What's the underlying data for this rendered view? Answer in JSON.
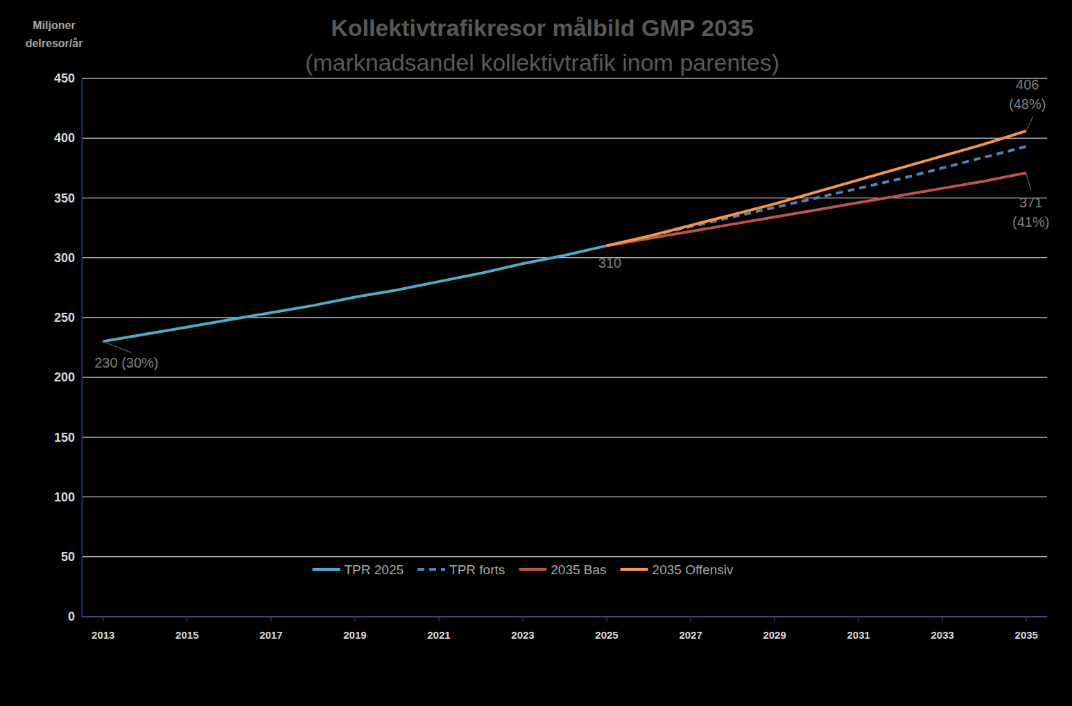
{
  "chart_data": {
    "type": "line",
    "title": "Kollektivtrafikresor målbild GMP 2035",
    "subtitle": "(marknadsandel kollektivtrafik inom parentes)",
    "ylabel": [
      "Miljoner",
      "delresor/år"
    ],
    "x": [
      2013,
      2014,
      2015,
      2016,
      2017,
      2018,
      2019,
      2020,
      2021,
      2022,
      2023,
      2024,
      2025,
      2026,
      2027,
      2028,
      2029,
      2030,
      2031,
      2032,
      2033,
      2034,
      2035
    ],
    "series": [
      {
        "name": "TPR 2025",
        "color": "#4bacc6",
        "line_style": "solid",
        "values": [
          230,
          236,
          242,
          248,
          254,
          260,
          267,
          273,
          280,
          287,
          295,
          302,
          310,
          null,
          null,
          null,
          null,
          null,
          null,
          null,
          null,
          null,
          null
        ]
      },
      {
        "name": "TPR forts",
        "color": "#4f81bd",
        "line_style": "dashed",
        "values": [
          null,
          null,
          null,
          null,
          null,
          null,
          null,
          null,
          null,
          null,
          null,
          null,
          310,
          318,
          326,
          334,
          342,
          350,
          358,
          366,
          375,
          384,
          393
        ]
      },
      {
        "name": "2035 Bas",
        "color": "#c0504d",
        "line_style": "solid",
        "values": [
          null,
          null,
          null,
          null,
          null,
          null,
          null,
          null,
          null,
          null,
          null,
          null,
          310,
          316,
          322,
          328,
          334,
          340,
          346,
          352,
          358,
          364,
          371
        ]
      },
      {
        "name": "2035 Offensiv",
        "color": "#f79646",
        "line_style": "solid",
        "values": [
          null,
          null,
          null,
          null,
          null,
          null,
          null,
          null,
          null,
          null,
          null,
          null,
          310,
          318,
          327,
          336,
          345,
          355,
          365,
          375,
          385,
          395,
          406
        ]
      }
    ],
    "annotations": [
      {
        "text": [
          "230 (30%)"
        ],
        "x": 2013,
        "y": 230
      },
      {
        "text": [
          "310"
        ],
        "x": 2025,
        "y": 310
      },
      {
        "text": [
          "406",
          "(48%)"
        ],
        "x": 2035,
        "y": 406
      },
      {
        "text": [
          "371",
          "(41%)"
        ],
        "x": 2035,
        "y": 371
      }
    ],
    "xlim": [
      2012.5,
      2035.5
    ],
    "xticks": [
      2013,
      2015,
      2017,
      2019,
      2021,
      2023,
      2025,
      2027,
      2029,
      2031,
      2033,
      2035
    ],
    "ylim": [
      0,
      450
    ],
    "yticks": [
      0,
      50,
      100,
      150,
      200,
      250,
      300,
      350,
      400,
      450
    ],
    "grid": true,
    "legend": "bottom"
  }
}
